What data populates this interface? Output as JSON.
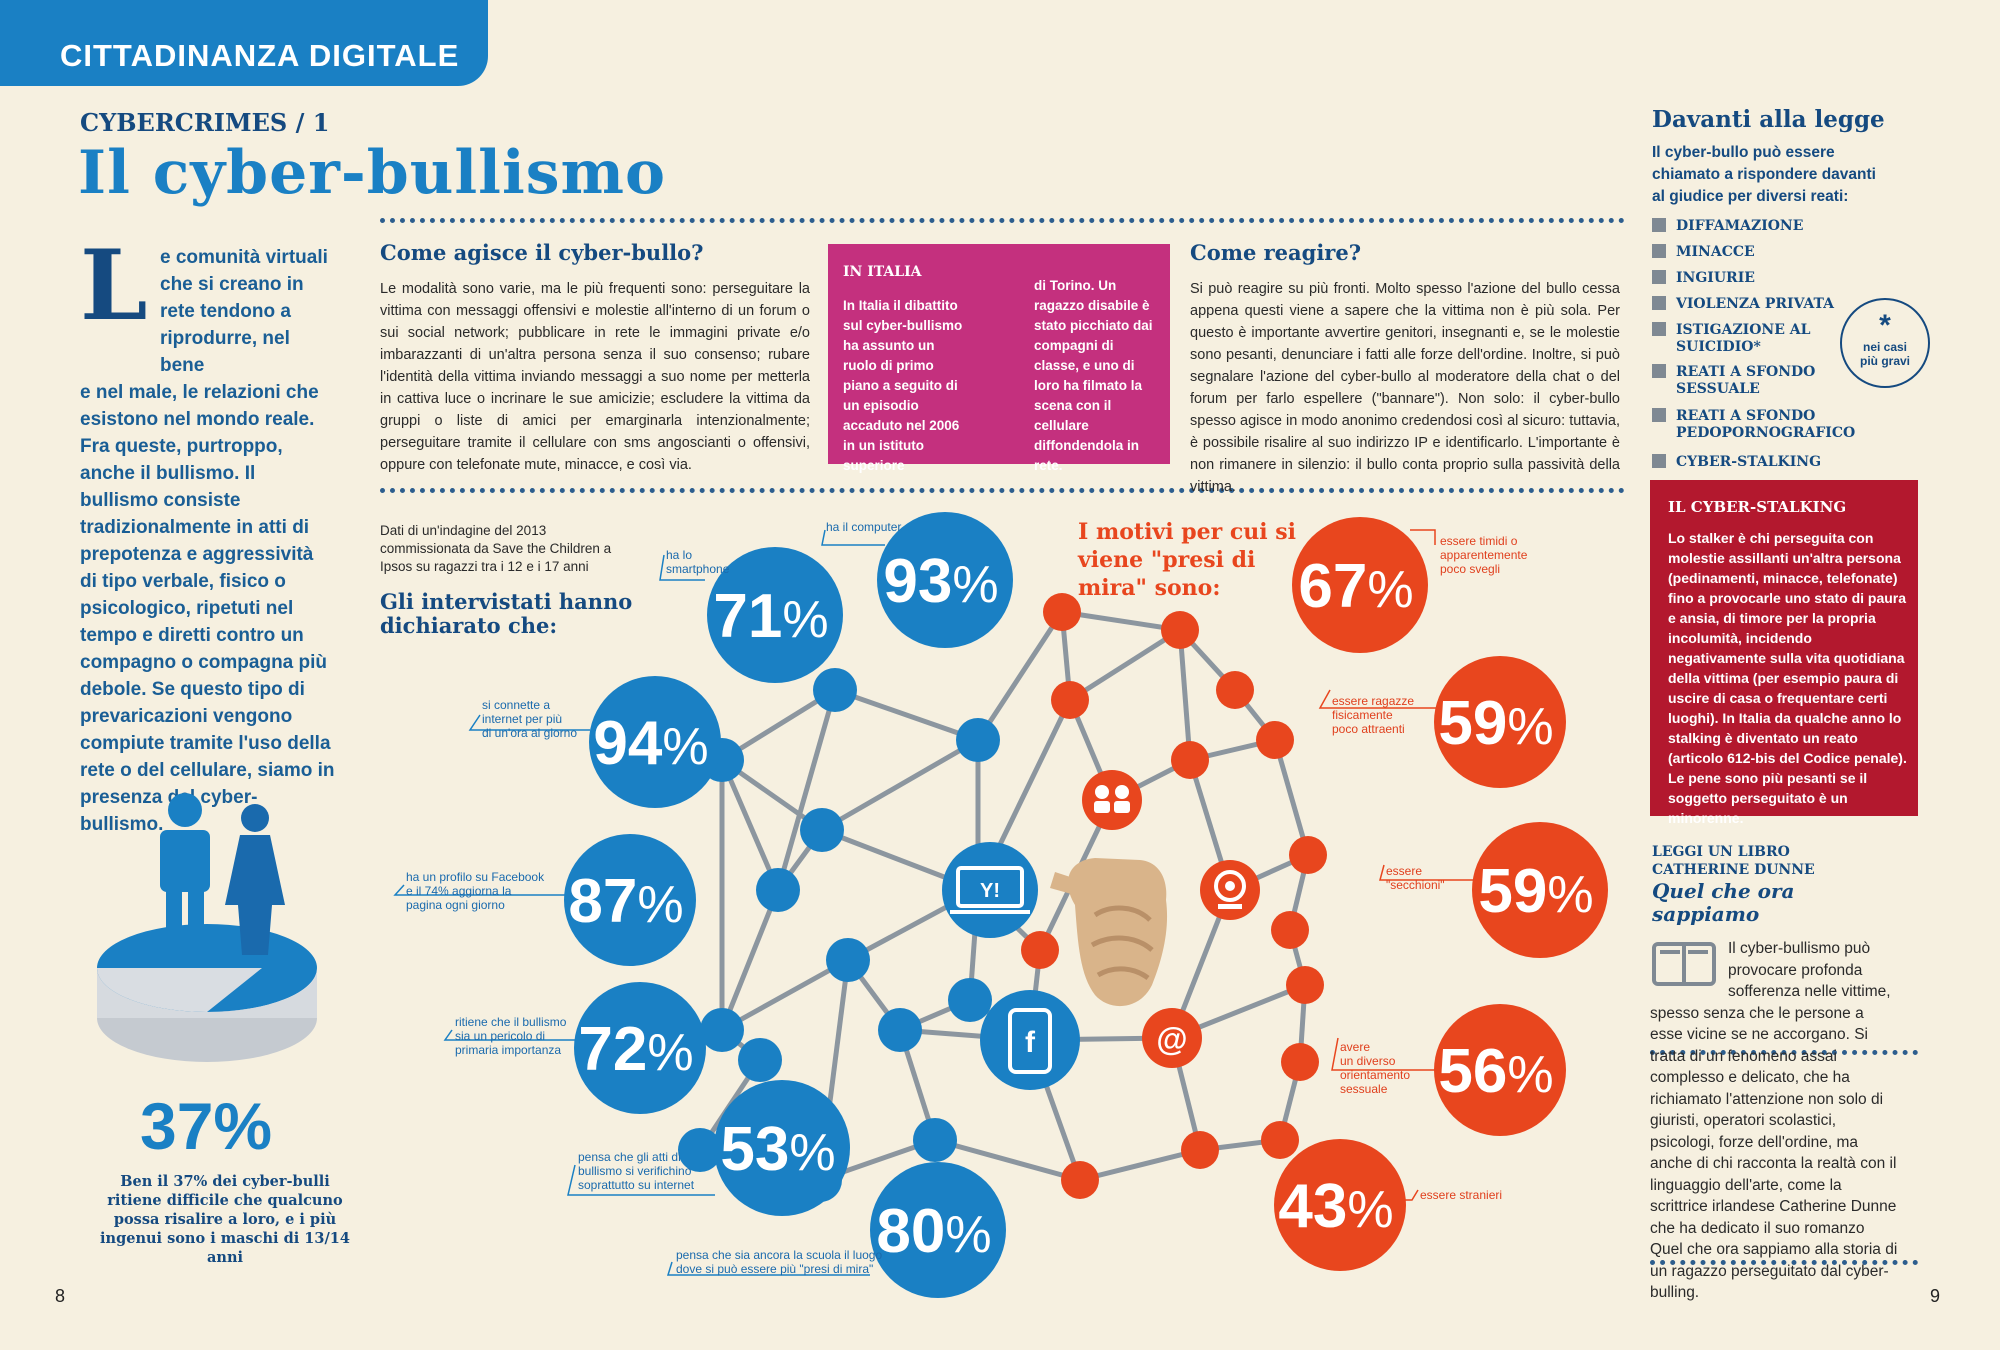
{
  "header": {
    "section": "CITTADINANZA DIGITALE"
  },
  "kicker": "CYBERCRIMES / 1",
  "title": "Il cyber-bullismo",
  "intro": {
    "drop_cap": "L",
    "lines_short": [
      "e comunità virtuali",
      "che si creano in",
      "rete tendono a",
      "riprodurre, nel bene"
    ],
    "text_rest": "e nel male, le relazioni che esistono nel mondo reale. Fra queste, purtroppo, anche il bullismo. Il bullismo consiste tradizionalmente in atti di prepotenza e aggressività di tipo verbale, fisico o psicologico, ripetuti nel tempo e diretti contro un compagno o compagna più debole. Se questo tipo di prevaricazioni vengono compiute tramite l'uso della rete o del cellulare, siamo in presenza del cyber-bullismo."
  },
  "how": {
    "title": "Come agisce il cyber-bullo?",
    "text": "Le modalità sono varie, ma le più frequenti sono: perseguitare la vittima con messaggi offensivi e molestie all'interno di un forum o sui social network; pubblicare in rete le immagini private e/o imbarazzanti di un'altra persona senza il suo consenso; rubare l'identità della vittima inviando messaggi a suo nome per metterla in cattiva luce o incrinare le sue amicizie; escludere la vittima da gruppi o liste di amici per emarginarla intenzionalmente; perseguitare tramite il cellulare con sms angoscianti o offensivi, oppure con telefonate mute, minacce, e così via."
  },
  "italia": {
    "title": "IN ITALIA",
    "col1": "In Italia il dibattito sul cyber-bullismo ha assunto un ruolo di primo piano a seguito di un episodio accaduto nel 2006 in un istituto superiore",
    "col2": "di Torino. Un ragazzo disabile è stato picchiato dai compagni di classe, e uno di loro ha filmato la scena con il cellulare diffondendola in rete."
  },
  "react": {
    "title": "Come reagire?",
    "text": "Si può reagire su più fronti. Molto spesso l'azione del bullo cessa appena questi viene a sapere che la vittima non è più sola. Per questo è importante avvertire genitori, insegnanti e, se le molestie sono pesanti, denunciare i fatti alle forze dell'ordine. Inoltre, si può segnalare l'azione del cyber-bullo al moderatore della chat o del forum per farlo espellere (\"bannare\"). Non solo: il cyber-bullo spesso agisce in modo anonimo credendosi così al sicuro: tuttavia, è possibile risalire al suo indirizzo IP e identificarlo. L'importante è non rimanere in silenzio: il bullo conta proprio sulla passività della vittima."
  },
  "law": {
    "title": "Davanti alla legge",
    "intro": "Il cyber-bullo può essere chiamato a rispondere davanti al giudice per diversi reati:",
    "crimes": [
      "DIFFAMAZIONE",
      "MINACCE",
      "INGIURIE",
      "VIOLENZA PRIVATA",
      "ISTIGAZIONE AL SUICIDIO*",
      "REATI A SFONDO SESSUALE",
      "REATI A SFONDO PEDOPORNOGRAFICO",
      "CYBER-STALKING"
    ],
    "badge_star": "*",
    "badge_text": [
      "nei casi",
      "più gravi"
    ]
  },
  "stalking": {
    "title": "IL CYBER-STALKING",
    "text": "Lo stalker è chi perseguita con molestie assillanti un'altra persona (pedinamenti, minacce, telefonate) fino a provocarle uno stato di paura e ansia, di timore per la propria incolumità, incidendo negativamente sulla vita quotidiana della vittima (per esempio paura di uscire di casa o frequentare certi luoghi). In Italia da qualche anno lo stalking è diventato un reato (articolo 612-bis del Codice penale). Le pene sono più pesanti se il soggetto perseguitato è un minorenne."
  },
  "book": {
    "label1": "LEGGI UN LIBRO",
    "label2": "CATHERINE DUNNE",
    "title_line1": "Quel che ora",
    "title_line2": "sappiamo",
    "lines_short": [
      "Il cyber-bullismo può",
      "provocare profonda",
      "sofferenza nelle vittime,"
    ],
    "text_rest": "spesso senza che le persone a esse vicine se ne accorgano. Si tratta di un fenomeno assai complesso e delicato, che ha richiamato l'attenzione non solo di giuristi, operatori scolastici, psicologi, forze dell'ordine, ma anche di chi racconta la realtà con il linguaggio dell'arte, come la scrittrice irlandese Catherine Dunne che ha dedicato il suo romanzo Quel che ora sappiamo alla storia di un ragazzo perseguitato dal cyber-bulling."
  },
  "survey": {
    "source": [
      "Dati di un'indagine del 2013",
      "commissionata da Save the Children a",
      "Ipsos su ragazzi tra i 12 e i 17 anni"
    ],
    "heading": [
      "Gli intervistati hanno",
      "dichiarato che:"
    ],
    "stats": [
      {
        "value": "93",
        "unit": "%",
        "label": [
          "ha il computer"
        ]
      },
      {
        "value": "71",
        "unit": "%",
        "label": [
          "ha lo",
          "smartphone"
        ]
      },
      {
        "value": "94",
        "unit": "%",
        "label": [
          "si connette a",
          "internet per più",
          "di un'ora al giorno"
        ]
      },
      {
        "value": "87",
        "unit": "%",
        "label": [
          "ha un profilo su Facebook",
          "e il 74% aggiorna la",
          "pagina ogni giorno"
        ]
      },
      {
        "value": "72",
        "unit": "%",
        "label": [
          "ritiene che il bullismo",
          "sia un pericolo di",
          "primaria importanza"
        ]
      },
      {
        "value": "53",
        "unit": "%",
        "label": [
          "pensa che gli atti di",
          "bullismo si verifichino",
          "soprattutto su internet"
        ]
      },
      {
        "value": "80",
        "unit": "%",
        "label": [
          "pensa che sia ancora la scuola il luogo",
          "dove si può essere più \"presi di mira\""
        ]
      }
    ]
  },
  "reasons": {
    "heading": [
      "I motivi per cui si",
      "viene \"presi di",
      "mira\" sono:"
    ],
    "stats": [
      {
        "value": "67",
        "unit": "%",
        "label": [
          "essere timidi o",
          "apparentemente",
          "poco svegli"
        ]
      },
      {
        "value": "59",
        "unit": "%",
        "label": [
          "essere ragazze",
          "fisicamente",
          "poco attraenti"
        ]
      },
      {
        "value": "59",
        "unit": "%",
        "label": [
          "essere",
          "\"secchioni\""
        ]
      },
      {
        "value": "56",
        "unit": "%",
        "label": [
          "avere",
          "un diverso",
          "orientamento",
          "sessuale"
        ]
      },
      {
        "value": "43",
        "unit": "%",
        "label": [
          "essere stranieri"
        ]
      }
    ]
  },
  "bully_stat": {
    "value": "37%",
    "caption": "Ben il 37% dei cyber-bulli ritiene difficile che qualcuno possa risalire a loro, e i più ingenui sono i maschi di 13/14 anni"
  },
  "icons": {
    "yahoo_label": "Y!",
    "email_label": "@",
    "facebook_label": "f"
  },
  "page_numbers": {
    "left": "8",
    "right": "9"
  },
  "colors": {
    "blue": "#1a80c4",
    "dark_blue": "#154a80",
    "orange": "#e8461e",
    "pink": "#c4307e",
    "red": "#b3182e",
    "beige": "#f6f0e0",
    "gray_line": "#8c969f"
  }
}
